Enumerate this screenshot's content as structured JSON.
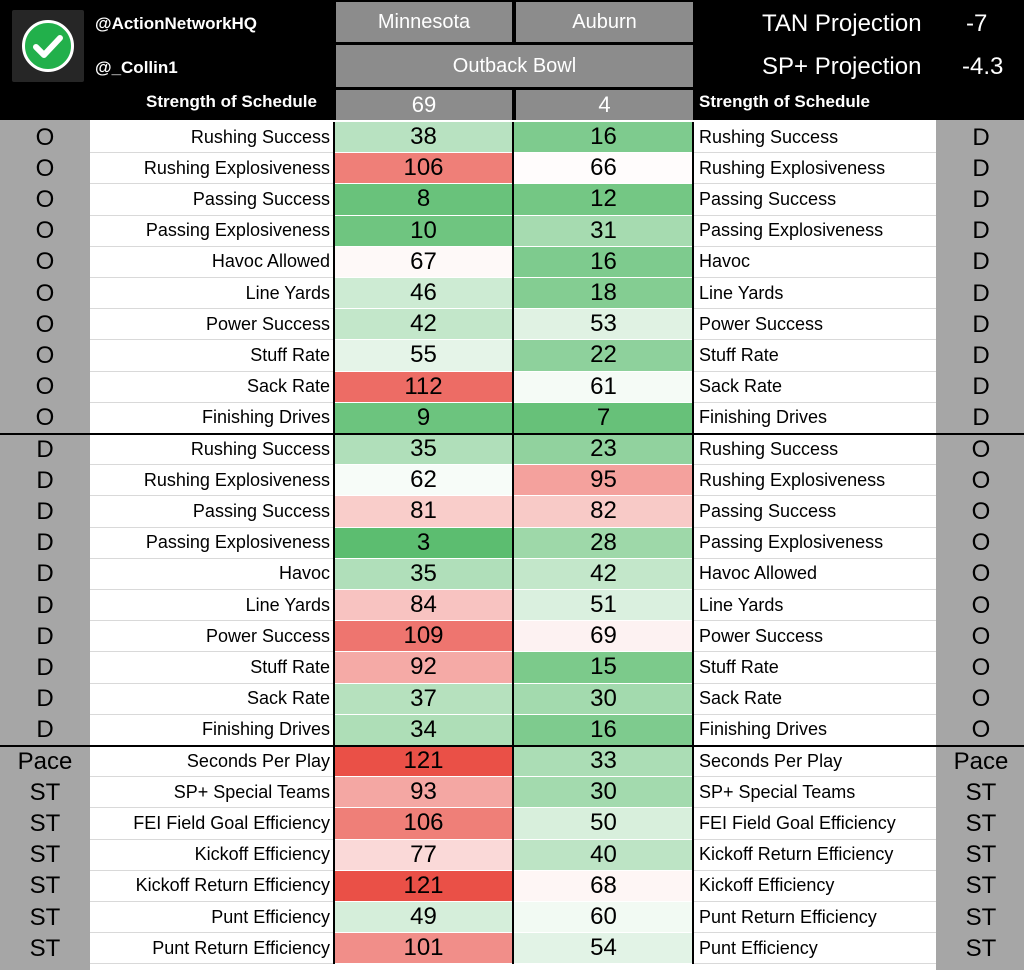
{
  "header": {
    "handle1": "@ActionNetworkHQ",
    "handle2": "@_Collin1",
    "team_left": "Minnesota",
    "team_right": "Auburn",
    "bowl": "Outback Bowl",
    "tan_label": "TAN Projection",
    "tan_value": "-7",
    "sp_label": "SP+ Projection",
    "sp_value": "-4.3",
    "sos_label": "Strength of Schedule",
    "sos_left": "69",
    "sos_right": "4",
    "logo_icon": "checkmark-icon"
  },
  "colors": {
    "strong_green": "#57bb6b",
    "white": "#ffffff",
    "strong_red": "#e8433a",
    "side_gray": "#a6a6a6",
    "header_gray": "#8c8c8c"
  },
  "rows": [
    {
      "side_l": "O",
      "label_l": "Rushing Success",
      "val_a": "38",
      "val_b": "16",
      "label_r": "Rushing Success",
      "side_r": "D"
    },
    {
      "side_l": "O",
      "label_l": "Rushing Explosiveness",
      "val_a": "106",
      "val_b": "66",
      "label_r": "Rushing Explosiveness",
      "side_r": "D"
    },
    {
      "side_l": "O",
      "label_l": "Passing Success",
      "val_a": "8",
      "val_b": "12",
      "label_r": "Passing Success",
      "side_r": "D"
    },
    {
      "side_l": "O",
      "label_l": "Passing Explosiveness",
      "val_a": "10",
      "val_b": "31",
      "label_r": "Passing Explosiveness",
      "side_r": "D"
    },
    {
      "side_l": "O",
      "label_l": "Havoc Allowed",
      "val_a": "67",
      "val_b": "16",
      "label_r": "Havoc",
      "side_r": "D"
    },
    {
      "side_l": "O",
      "label_l": "Line Yards",
      "val_a": "46",
      "val_b": "18",
      "label_r": "Line Yards",
      "side_r": "D"
    },
    {
      "side_l": "O",
      "label_l": "Power Success",
      "val_a": "42",
      "val_b": "53",
      "label_r": "Power Success",
      "side_r": "D"
    },
    {
      "side_l": "O",
      "label_l": "Stuff Rate",
      "val_a": "55",
      "val_b": "22",
      "label_r": "Stuff Rate",
      "side_r": "D"
    },
    {
      "side_l": "O",
      "label_l": "Sack Rate",
      "val_a": "112",
      "val_b": "61",
      "label_r": "Sack Rate",
      "side_r": "D"
    },
    {
      "side_l": "O",
      "label_l": "Finishing Drives",
      "val_a": "9",
      "val_b": "7",
      "label_r": "Finishing Drives",
      "side_r": "D"
    },
    {
      "side_l": "D",
      "label_l": "Rushing Success",
      "val_a": "35",
      "val_b": "23",
      "label_r": "Rushing Success",
      "side_r": "O"
    },
    {
      "side_l": "D",
      "label_l": "Rushing Explosiveness",
      "val_a": "62",
      "val_b": "95",
      "label_r": "Rushing Explosiveness",
      "side_r": "O"
    },
    {
      "side_l": "D",
      "label_l": "Passing Success",
      "val_a": "81",
      "val_b": "82",
      "label_r": "Passing Success",
      "side_r": "O"
    },
    {
      "side_l": "D",
      "label_l": "Passing Explosiveness",
      "val_a": "3",
      "val_b": "28",
      "label_r": "Passing Explosiveness",
      "side_r": "O"
    },
    {
      "side_l": "D",
      "label_l": "Havoc",
      "val_a": "35",
      "val_b": "42",
      "label_r": "Havoc Allowed",
      "side_r": "O"
    },
    {
      "side_l": "D",
      "label_l": "Line Yards",
      "val_a": "84",
      "val_b": "51",
      "label_r": "Line Yards",
      "side_r": "O"
    },
    {
      "side_l": "D",
      "label_l": "Power Success",
      "val_a": "109",
      "val_b": "69",
      "label_r": "Power Success",
      "side_r": "O"
    },
    {
      "side_l": "D",
      "label_l": "Stuff Rate",
      "val_a": "92",
      "val_b": "15",
      "label_r": "Stuff Rate",
      "side_r": "O"
    },
    {
      "side_l": "D",
      "label_l": "Sack Rate",
      "val_a": "37",
      "val_b": "30",
      "label_r": "Sack Rate",
      "side_r": "O"
    },
    {
      "side_l": "D",
      "label_l": "Finishing Drives",
      "val_a": "34",
      "val_b": "16",
      "label_r": "Finishing Drives",
      "side_r": "O"
    },
    {
      "side_l": "Pace",
      "label_l": "Seconds Per Play",
      "val_a": "121",
      "val_b": "33",
      "label_r": "Seconds Per Play",
      "side_r": "Pace"
    },
    {
      "side_l": "ST",
      "label_l": "SP+ Special Teams",
      "val_a": "93",
      "val_b": "30",
      "label_r": "SP+ Special Teams",
      "side_r": "ST"
    },
    {
      "side_l": "ST",
      "label_l": "FEI Field Goal Efficiency",
      "val_a": "106",
      "val_b": "50",
      "label_r": "FEI Field Goal Efficiency",
      "side_r": "ST"
    },
    {
      "side_l": "ST",
      "label_l": "Kickoff Efficiency",
      "val_a": "77",
      "val_b": "40",
      "label_r": "Kickoff Return Efficiency",
      "side_r": "ST"
    },
    {
      "side_l": "ST",
      "label_l": "Kickoff Return Efficiency",
      "val_a": "121",
      "val_b": "68",
      "label_r": "Kickoff Efficiency",
      "side_r": "ST"
    },
    {
      "side_l": "ST",
      "label_l": "Punt Efficiency",
      "val_a": "49",
      "val_b": "60",
      "label_r": "Punt Return Efficiency",
      "side_r": "ST"
    },
    {
      "side_l": "ST",
      "label_l": "Punt Return Efficiency",
      "val_a": "101",
      "val_b": "54",
      "label_r": "Punt Efficiency",
      "side_r": "ST"
    }
  ]
}
